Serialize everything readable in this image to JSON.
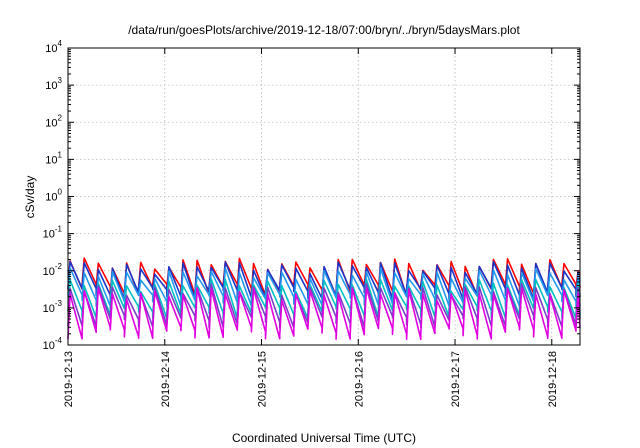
{
  "chart_data": {
    "type": "line",
    "title": "/data/run/goesPlots/archive/2019-12-18/07:00/bryn/../bryn/5daysMars.plot",
    "xlabel": "Coordinated Universal Time (UTC)",
    "ylabel": "cSv/day",
    "xlim": [
      "2019-12-13T00:00",
      "2019-12-18T07:00"
    ],
    "ylim": [
      0.0001,
      10000
    ],
    "yscale": "log",
    "grid": true,
    "legend": "none",
    "x_ticks": [
      "2019-12-13",
      "2019-12-14",
      "2019-12-15",
      "2019-12-16",
      "2019-12-17",
      "2019-12-18"
    ],
    "y_ticks": [
      {
        "base": "10",
        "exp": "-4"
      },
      {
        "base": "10",
        "exp": "-3"
      },
      {
        "base": "10",
        "exp": "-2"
      },
      {
        "base": "10",
        "exp": "-1"
      },
      {
        "base": "10",
        "exp": "0"
      },
      {
        "base": "10",
        "exp": "1"
      },
      {
        "base": "10",
        "exp": "2"
      },
      {
        "base": "10",
        "exp": "3"
      },
      {
        "base": "10",
        "exp": "4"
      }
    ],
    "pattern": {
      "period_hours": 3.5,
      "description_values": "sawtooth; each cycle rises sharply then decays"
    },
    "series": [
      {
        "color": "#ff0000",
        "peak": 0.016,
        "trough": 0.0032
      },
      {
        "color": "#1a35c8",
        "peak": 0.013,
        "trough": 0.0026
      },
      {
        "color": "#2299ee",
        "peak": 0.0085,
        "trough": 0.0017
      },
      {
        "color": "#00c0c0",
        "peak": 0.0045,
        "trough": 0.0008
      },
      {
        "color": "#7a3fc8",
        "peak": 0.0032,
        "trough": 0.00045
      },
      {
        "color": "#e000e0",
        "peak": 0.0026,
        "trough": 0.00022
      }
    ]
  }
}
